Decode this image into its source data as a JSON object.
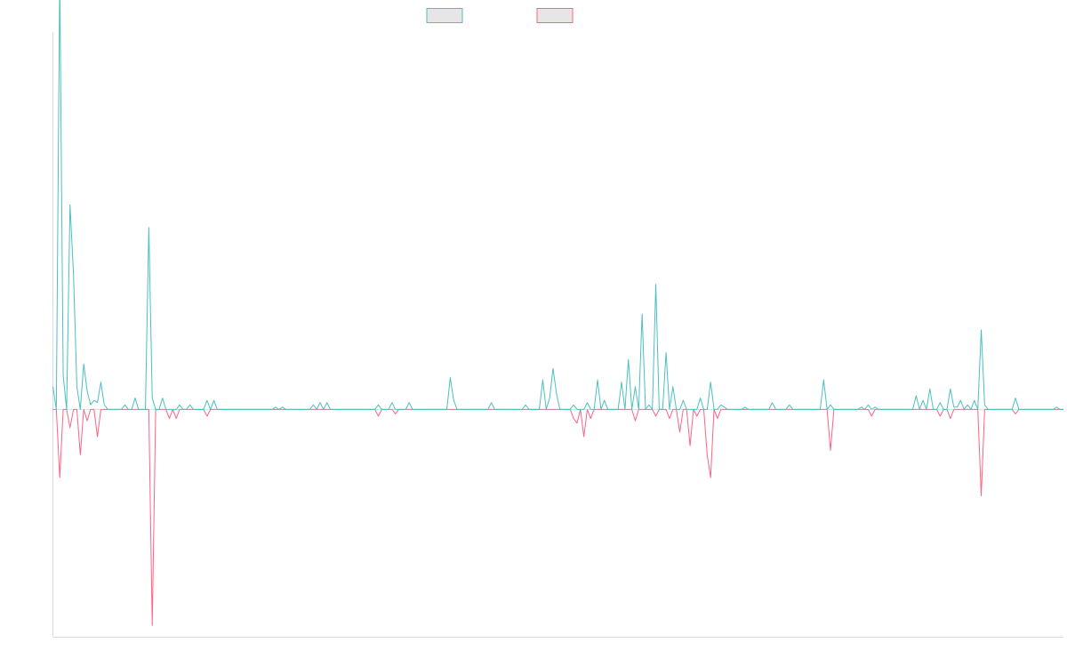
{
  "chart_data": {
    "type": "line",
    "title": "",
    "xlabel": "",
    "ylabel": "",
    "grid": false,
    "legend": "top-center",
    "ylim": [
      -1,
      1.66
    ],
    "x_count": 296,
    "baseline": 0,
    "series": [
      {
        "color": "#4bc0c0",
        "fill": "#e6e6e6",
        "points": [
          [
            0,
            0.1
          ],
          [
            2,
            1.9
          ],
          [
            3,
            0.15
          ],
          [
            5,
            0.9
          ],
          [
            6,
            0.6
          ],
          [
            7,
            0.1
          ],
          [
            9,
            0.2
          ],
          [
            10,
            0.08
          ],
          [
            11,
            0.02
          ],
          [
            12,
            0.04
          ],
          [
            13,
            0.03
          ],
          [
            14,
            0.12
          ],
          [
            15,
            0.02
          ],
          [
            21,
            0.02
          ],
          [
            24,
            0.05
          ],
          [
            28,
            0.8
          ],
          [
            29,
            0.05
          ],
          [
            32,
            0.05
          ],
          [
            37,
            0.02
          ],
          [
            40,
            0.02
          ],
          [
            45,
            0.04
          ],
          [
            47,
            0.04
          ],
          [
            65,
            0.01
          ],
          [
            67,
            0.01
          ],
          [
            76,
            0.02
          ],
          [
            78,
            0.03
          ],
          [
            80,
            0.03
          ],
          [
            95,
            0.02
          ],
          [
            99,
            0.03
          ],
          [
            104,
            0.03
          ],
          [
            116,
            0.14
          ],
          [
            117,
            0.04
          ],
          [
            128,
            0.03
          ],
          [
            138,
            0.02
          ],
          [
            143,
            0.13
          ],
          [
            145,
            0.05
          ],
          [
            146,
            0.18
          ],
          [
            147,
            0.07
          ],
          [
            152,
            0.02
          ],
          [
            156,
            0.03
          ],
          [
            159,
            0.13
          ],
          [
            161,
            0.04
          ],
          [
            166,
            0.12
          ],
          [
            168,
            0.22
          ],
          [
            170,
            0.1
          ],
          [
            172,
            0.42
          ],
          [
            174,
            0.02
          ],
          [
            176,
            0.55
          ],
          [
            179,
            0.25
          ],
          [
            181,
            0.1
          ],
          [
            184,
            0.04
          ],
          [
            189,
            0.05
          ],
          [
            192,
            0.12
          ],
          [
            195,
            0.02
          ],
          [
            196,
            0.01
          ],
          [
            202,
            0.01
          ],
          [
            210,
            0.03
          ],
          [
            215,
            0.02
          ],
          [
            225,
            0.13
          ],
          [
            227,
            0.02
          ],
          [
            236,
            0.01
          ],
          [
            238,
            0.02
          ],
          [
            240,
            0.01
          ],
          [
            252,
            0.06
          ],
          [
            254,
            0.04
          ],
          [
            256,
            0.09
          ],
          [
            259,
            0.03
          ],
          [
            262,
            0.09
          ],
          [
            263,
            0.01
          ],
          [
            264,
            0.01
          ],
          [
            265,
            0.04
          ],
          [
            267,
            0.02
          ],
          [
            269,
            0.04
          ],
          [
            271,
            0.35
          ],
          [
            272,
            0.02
          ],
          [
            281,
            0.05
          ],
          [
            293,
            0.01
          ]
        ]
      },
      {
        "color": "#ff6384",
        "fill": "#e6e6e6",
        "points": [
          [
            2,
            -0.3
          ],
          [
            5,
            -0.08
          ],
          [
            8,
            -0.2
          ],
          [
            10,
            -0.05
          ],
          [
            13,
            -0.12
          ],
          [
            29,
            -0.95
          ],
          [
            34,
            -0.04
          ],
          [
            36,
            -0.04
          ],
          [
            45,
            -0.03
          ],
          [
            95,
            -0.03
          ],
          [
            100,
            -0.02
          ],
          [
            152,
            -0.04
          ],
          [
            153,
            -0.06
          ],
          [
            155,
            -0.12
          ],
          [
            157,
            -0.04
          ],
          [
            170,
            -0.05
          ],
          [
            176,
            -0.03
          ],
          [
            180,
            -0.04
          ],
          [
            183,
            -0.1
          ],
          [
            186,
            -0.16
          ],
          [
            188,
            -0.03
          ],
          [
            191,
            -0.2
          ],
          [
            192,
            -0.3
          ],
          [
            194,
            -0.04
          ],
          [
            227,
            -0.18
          ],
          [
            239,
            -0.03
          ],
          [
            259,
            -0.03
          ],
          [
            262,
            -0.04
          ],
          [
            271,
            -0.38
          ],
          [
            281,
            -0.02
          ]
        ]
      }
    ]
  }
}
